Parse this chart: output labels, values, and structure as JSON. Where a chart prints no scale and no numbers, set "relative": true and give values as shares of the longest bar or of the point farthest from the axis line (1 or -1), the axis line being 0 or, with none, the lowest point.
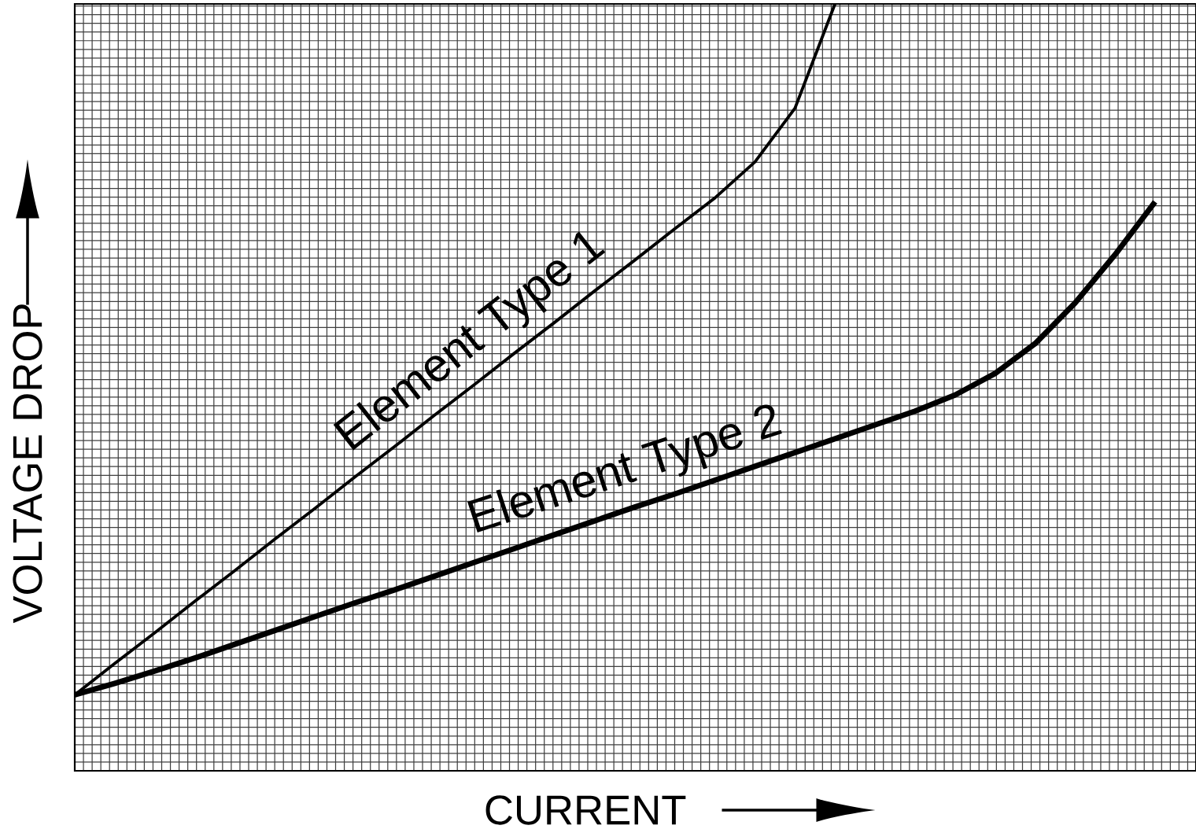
{
  "chart_data": {
    "type": "line",
    "relative": true,
    "grid": true,
    "xlabel": "CURRENT",
    "ylabel": "VOLTAGE DROP",
    "marker": "none",
    "categories": [
      null,
      null,
      null,
      null,
      null,
      null,
      null,
      null,
      null,
      null,
      null,
      null,
      null,
      null,
      null,
      null,
      null,
      null,
      null,
      null,
      null,
      null,
      null,
      null,
      null,
      null,
      null,
      null
    ],
    "series": [
      {
        "name": "Element Type 1",
        "color": "#000000",
        "values": [
          0.099,
          0.14,
          0.18,
          0.221,
          0.261,
          0.302,
          0.342,
          0.383,
          0.423,
          0.464,
          0.504,
          0.545,
          0.585,
          0.626,
          0.666,
          0.707,
          0.747,
          0.794,
          0.864,
          1.0,
          null,
          null,
          null,
          null,
          null,
          null,
          null,
          null
        ]
      },
      {
        "name": "Element Type 2",
        "color": "#000000",
        "values": [
          0.099,
          0.114,
          0.13,
          0.147,
          0.165,
          0.183,
          0.201,
          0.219,
          0.236,
          0.254,
          0.272,
          0.29,
          0.308,
          0.326,
          0.344,
          0.361,
          0.379,
          0.397,
          0.415,
          0.433,
          0.451,
          0.469,
          0.49,
          0.518,
          0.557,
          0.61,
          0.673,
          0.742
        ]
      }
    ]
  }
}
